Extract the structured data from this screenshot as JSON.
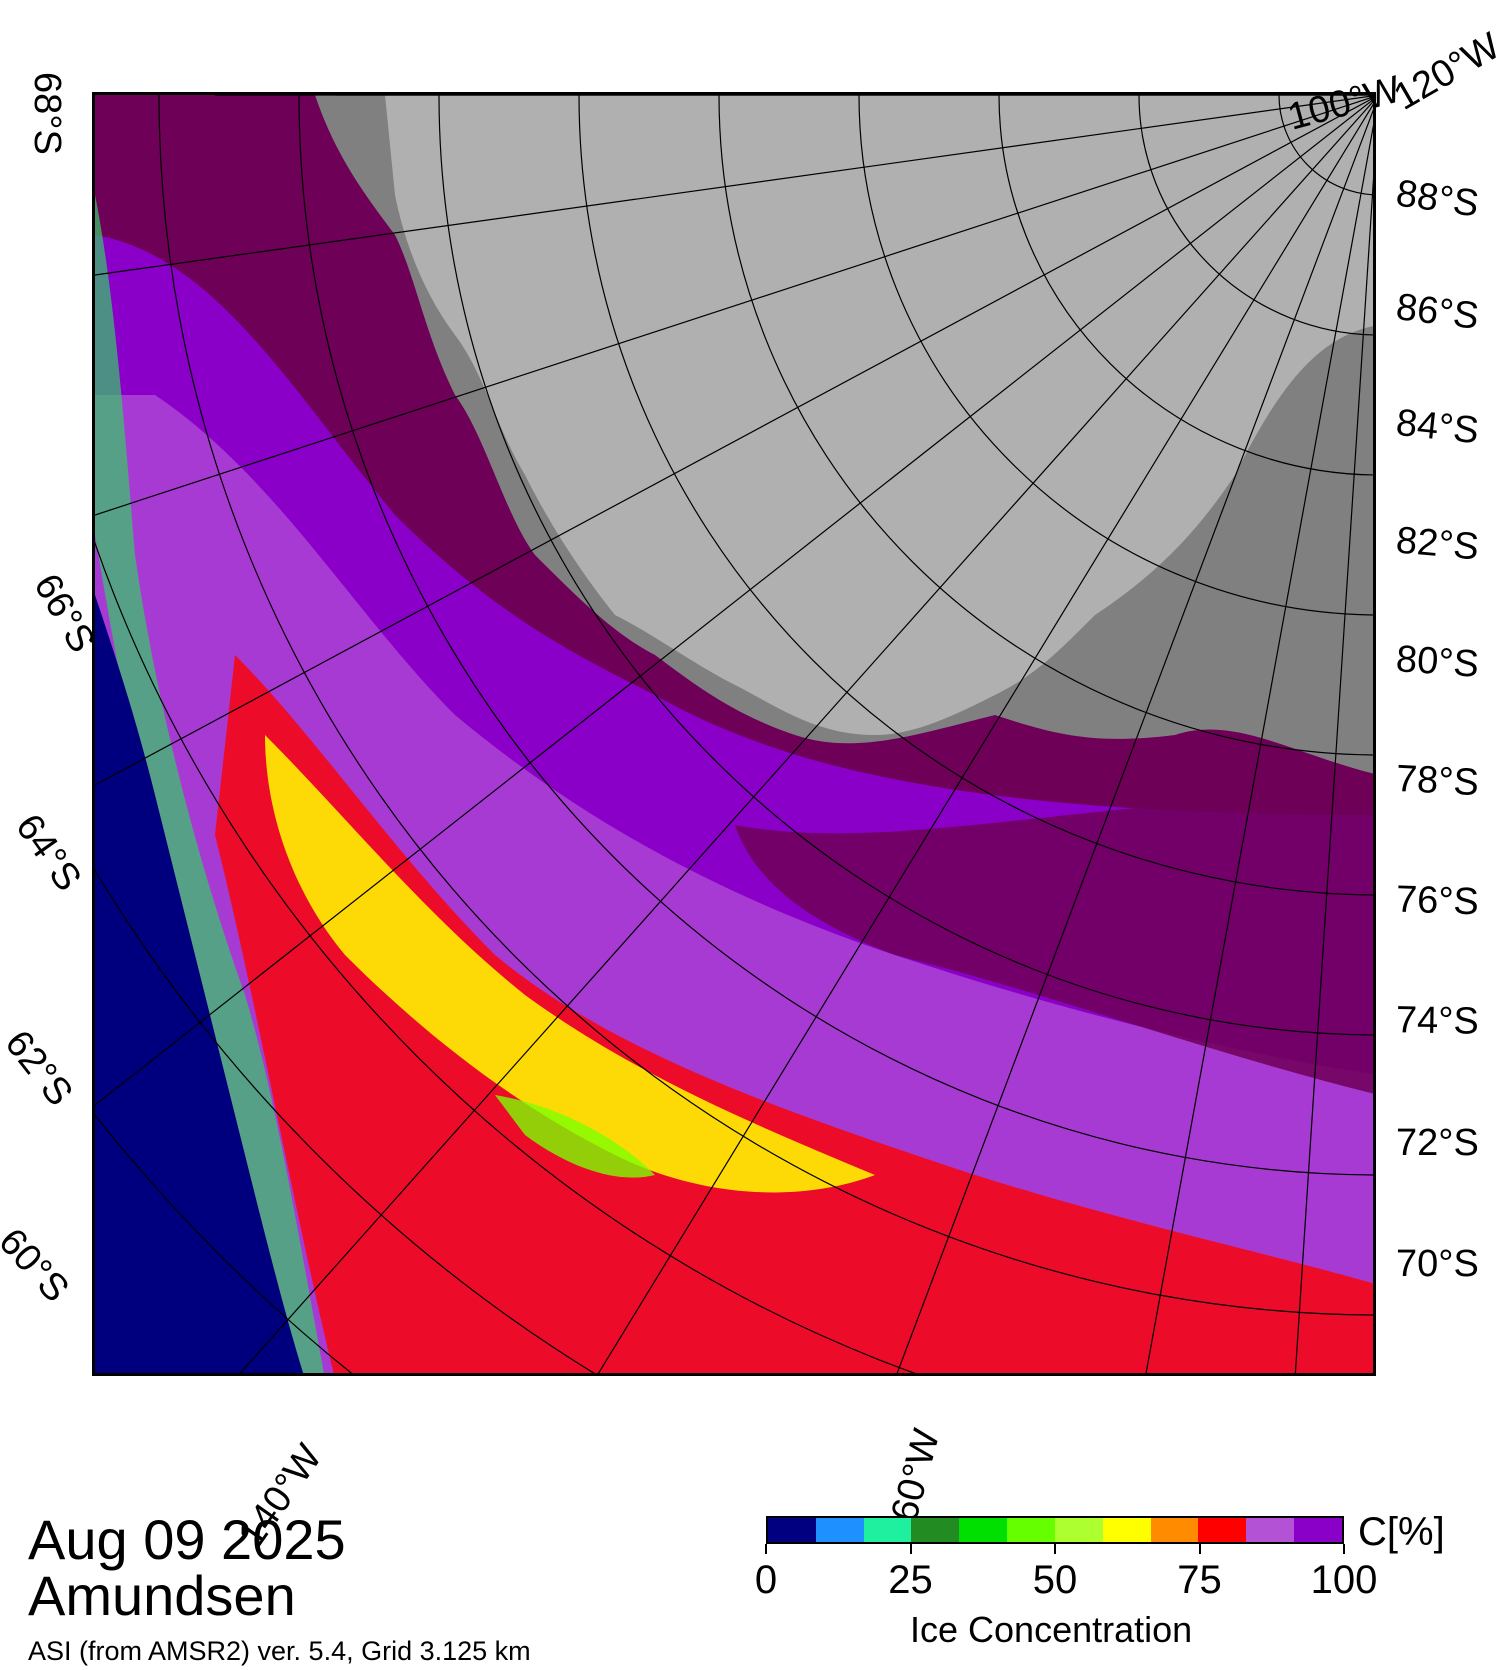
{
  "map": {
    "lat_labels_right": [
      "88°S",
      "86°S",
      "84°S",
      "82°S",
      "80°S",
      "78°S",
      "76°S",
      "74°S",
      "72°S",
      "70°S"
    ],
    "lat_labels_left": [
      "68°S",
      "66°S",
      "64°S",
      "62°S",
      "60°S"
    ],
    "lon_labels_top": [
      "100°W",
      "120°W"
    ],
    "lon_labels_bottom": [
      "140°W",
      "160°W"
    ],
    "colors": {
      "ocean": "#00007f",
      "land_ice": "#b0b0b0",
      "land_dark": "#808080",
      "full_ice": "#6e0058",
      "high_ice": "#8a00c8",
      "mid_ice": "#b452d6",
      "red": "#ff0000",
      "yellow": "#ffff00",
      "green": "#00ff00"
    }
  },
  "caption": {
    "date": "Aug 09 2025",
    "region": "Amundsen",
    "source": "ASI (from AMSR2) ver. 5.4,  Grid 3.125 km"
  },
  "legend": {
    "unit": "C[%]",
    "title": "Ice Concentration",
    "tick_labels": [
      "0",
      "25",
      "50",
      "75",
      "100"
    ],
    "tick_values": [
      0,
      25,
      50,
      75,
      100
    ],
    "colors": [
      "#000080",
      "#1e90ff",
      "#1ef0a0",
      "#228b22",
      "#00e000",
      "#66ff00",
      "#adff2f",
      "#ffff00",
      "#ff8c00",
      "#ff0000",
      "#b452d6",
      "#8a00c8"
    ]
  }
}
